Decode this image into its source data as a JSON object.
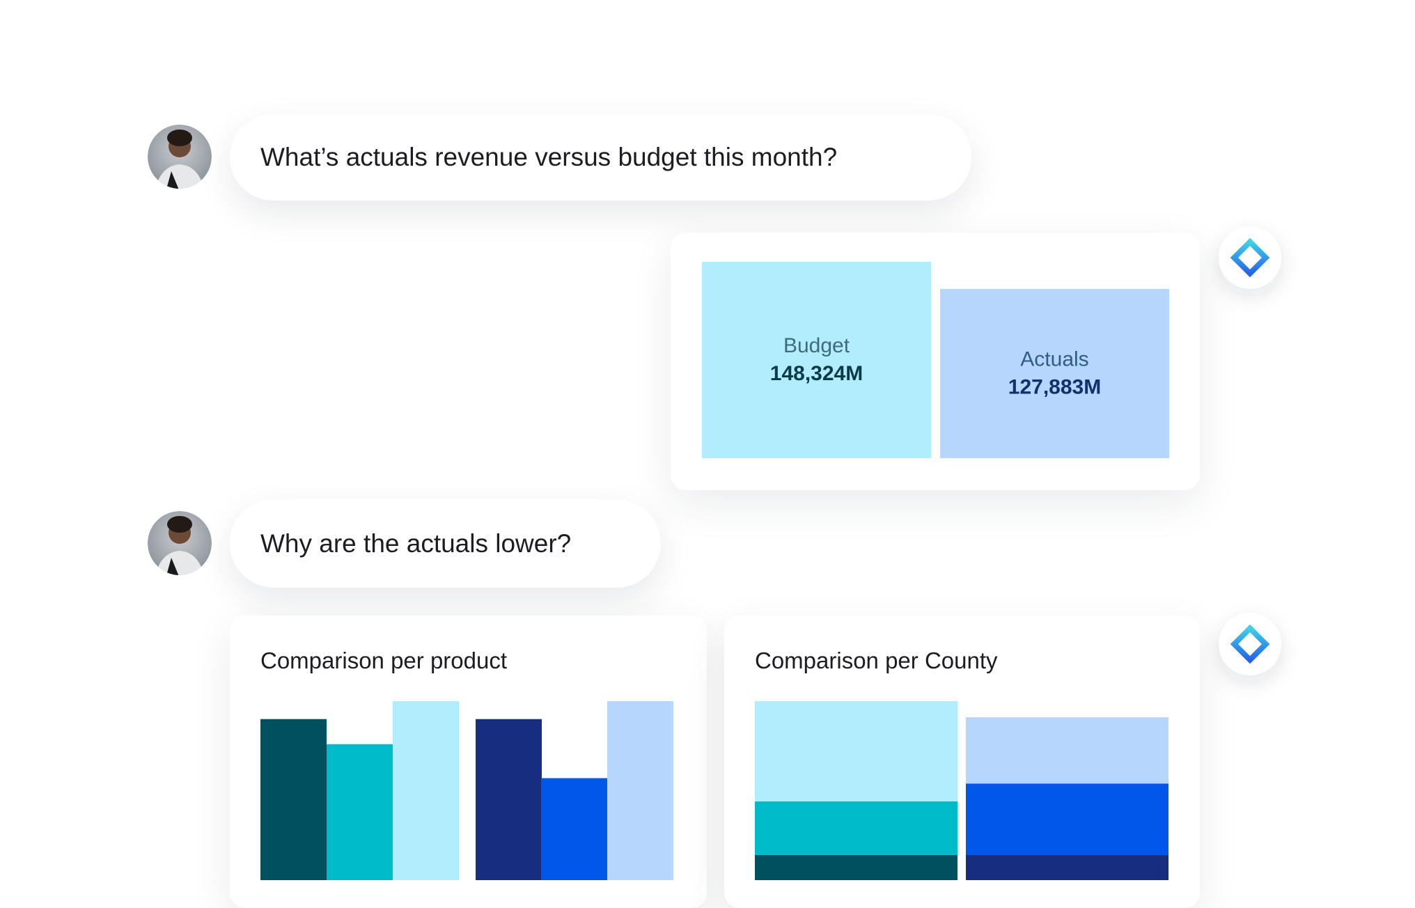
{
  "messages": [
    {
      "role": "user",
      "text": "What’s actuals revenue versus budget this month?"
    },
    {
      "role": "user",
      "text": "Why are the actuals lower?"
    }
  ],
  "chart_data": [
    {
      "type": "tiles",
      "categories": [
        "Budget",
        "Actuals"
      ],
      "values": [
        148324,
        127883
      ],
      "value_labels": [
        "148,324M",
        "127,883M"
      ],
      "colors": [
        "#b1edfc",
        "#b6d6fd"
      ],
      "label_colors": [
        "#3f6b7a",
        "#2f5c88"
      ],
      "value_colors": [
        "#0b3a49",
        "#11306e"
      ]
    },
    {
      "type": "bar",
      "title": "Comparison per product",
      "values": [
        90,
        76,
        100,
        90,
        57,
        100
      ],
      "colors": [
        "#00505f",
        "#00bccb",
        "#b1edfc",
        "#172e80",
        "#0057ea",
        "#b6d6fd"
      ],
      "ylim": [
        0,
        100
      ]
    },
    {
      "type": "stacked",
      "title": "Comparison per County",
      "stacks": [
        {
          "values": [
            14,
            30,
            56
          ],
          "colors": [
            "#00505f",
            "#00bccb",
            "#b1edfc"
          ]
        },
        {
          "values": [
            14,
            40,
            37
          ],
          "colors": [
            "#172e80",
            "#0057ea",
            "#b6d6fd"
          ]
        }
      ],
      "ylim": [
        0,
        100
      ]
    }
  ]
}
